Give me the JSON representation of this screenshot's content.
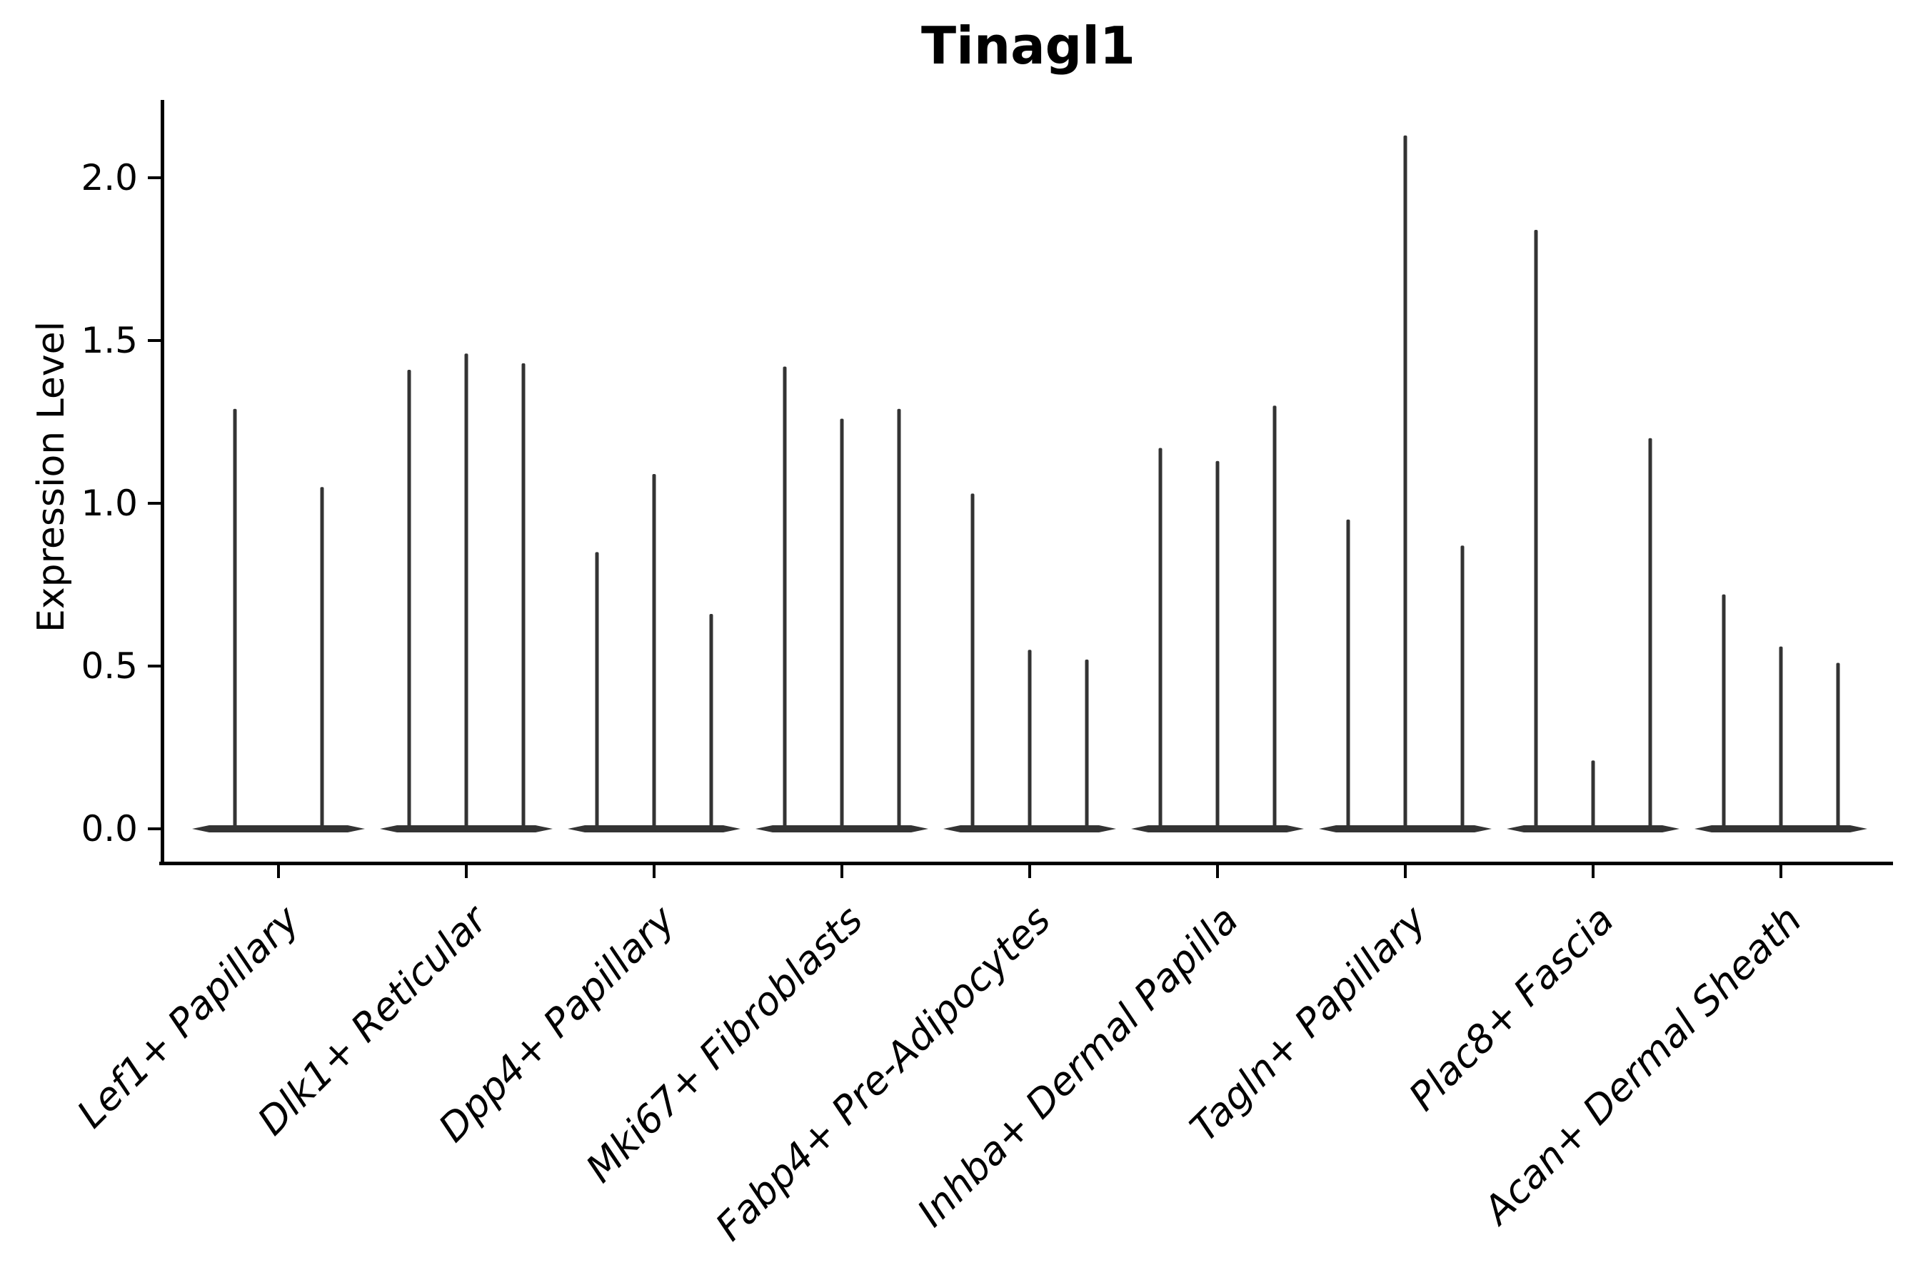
{
  "chart_data": {
    "type": "violin",
    "title": "Tinagl1",
    "ylabel": "Expression Level",
    "xlabel": "",
    "ytick_labels": [
      "0.0",
      "0.5",
      "1.0",
      "1.5",
      "2.0"
    ],
    "ytick_values": [
      0.0,
      0.5,
      1.0,
      1.5,
      2.0
    ],
    "ylim": [
      -0.1,
      2.24
    ],
    "grid": false,
    "legend": "none",
    "xlabel_rotation_deg": 45,
    "categories": [
      "Lef1+ Papillary",
      "Dlk1+ Reticular",
      "Dpp4+ Papillary",
      "Mki67+ Fibroblasts",
      "Fabp4+ Pre-Adipocytes",
      "Inhba+ Dermal Papilla",
      "Tagln+ Papillary",
      "Plac8+ Fascia",
      "Acan+ Dermal Sheath"
    ],
    "violins": [
      {
        "category": "Lef1+ Papillary",
        "peak_expression": [
          1.29,
          1.05
        ]
      },
      {
        "category": "Dlk1+ Reticular",
        "peak_expression": [
          1.41,
          1.46,
          1.43
        ]
      },
      {
        "category": "Dpp4+ Papillary",
        "peak_expression": [
          0.85,
          1.09,
          0.66
        ]
      },
      {
        "category": "Mki67+ Fibroblasts",
        "peak_expression": [
          1.42,
          1.26,
          1.29
        ]
      },
      {
        "category": "Fabp4+ Pre-Adipocytes",
        "peak_expression": [
          1.03,
          0.55,
          0.52
        ]
      },
      {
        "category": "Inhba+ Dermal Papilla",
        "peak_expression": [
          1.17,
          1.13,
          1.3
        ]
      },
      {
        "category": "Tagln+ Papillary",
        "peak_expression": [
          0.95,
          2.13,
          0.87
        ]
      },
      {
        "category": "Plac8+ Fascia",
        "peak_expression": [
          1.84,
          0.21,
          1.2
        ]
      },
      {
        "category": "Acan+ Dermal Sheath",
        "peak_expression": [
          0.72,
          0.56,
          0.51
        ]
      }
    ],
    "violin_color": "#333333",
    "axis_color": "#000000",
    "background": "#ffffff"
  }
}
